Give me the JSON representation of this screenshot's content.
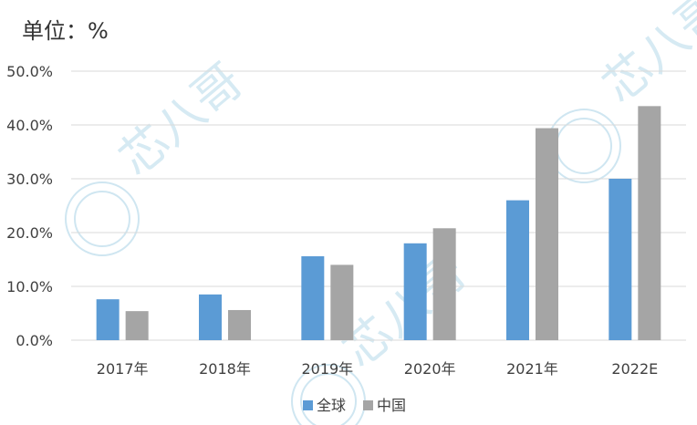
{
  "unit_label": "单位：%",
  "colors": {
    "global": "#5b9bd5",
    "china": "#a5a5a5",
    "grid": "#d9d9d9",
    "text": "#404040",
    "watermark": "#cfe6f1"
  },
  "watermark": {
    "text": "芯八哥",
    "icon": "logo-circle-icon"
  },
  "chart_data": {
    "type": "bar",
    "title": "",
    "xlabel": "",
    "ylabel": "",
    "ylim": [
      0,
      50
    ],
    "ytick_step": 10,
    "ytick_labels": [
      "0.0%",
      "10.0%",
      "20.0%",
      "30.0%",
      "40.0%",
      "50.0%"
    ],
    "grid": true,
    "legend_position": "bottom-center",
    "categories": [
      "2017年",
      "2018年",
      "2019年",
      "2020年",
      "2021年",
      "2022E"
    ],
    "series": [
      {
        "name": "全球",
        "values": [
          7.6,
          8.5,
          15.6,
          18.0,
          26.0,
          30.0
        ]
      },
      {
        "name": "中国",
        "values": [
          5.4,
          5.6,
          14.0,
          20.8,
          39.4,
          43.5
        ]
      }
    ]
  }
}
